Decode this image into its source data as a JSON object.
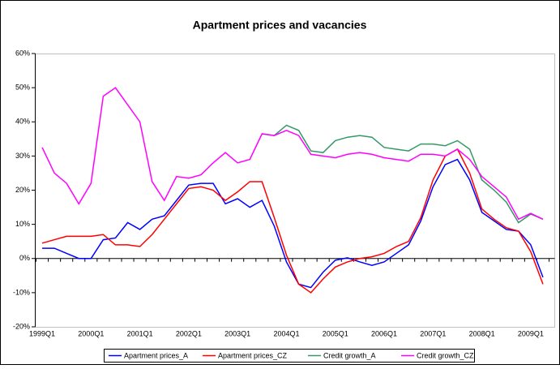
{
  "chart_data": {
    "type": "line",
    "title": "Apartment prices and vacancies",
    "categories": [
      "1999Q1",
      null,
      null,
      null,
      "2000Q1",
      null,
      null,
      null,
      "2001Q1",
      null,
      null,
      null,
      "2002Q1",
      null,
      null,
      null,
      "2003Q1",
      null,
      null,
      null,
      "2004Q1",
      null,
      null,
      null,
      "2005Q1",
      null,
      null,
      null,
      "2006Q1",
      null,
      null,
      null,
      "2007Q1",
      null,
      null,
      null,
      "2008Q1",
      null,
      null,
      null,
      "2009Q1",
      null
    ],
    "series": [
      {
        "name": "Apartment prices_A",
        "color": "#0000ff",
        "values": [
          3,
          3,
          1.5,
          0,
          0,
          5.5,
          6,
          10.5,
          8.5,
          11.5,
          12.5,
          17,
          21.5,
          22,
          22,
          16,
          17.5,
          15,
          17,
          9.5,
          -1,
          -7.5,
          -8.5,
          -4,
          -0.5,
          0.2,
          -1,
          -2,
          -1,
          1.5,
          4,
          11,
          21,
          27.5,
          29,
          23,
          13.5,
          11,
          8.5,
          8,
          4,
          -5.5
        ]
      },
      {
        "name": "Apartment prices_CZ",
        "color": "#ff0000",
        "values": [
          4.5,
          5.5,
          6.5,
          6.5,
          6.5,
          7,
          4,
          4,
          3.5,
          7,
          11.5,
          16,
          20.5,
          21,
          20,
          17,
          19.5,
          22.5,
          22.5,
          12,
          1,
          -7.5,
          -10,
          -6,
          -2.5,
          -1,
          0,
          0.5,
          1.5,
          3.5,
          5,
          12,
          23,
          30,
          32,
          25,
          14.5,
          11.5,
          9,
          8,
          2,
          -7.5
        ]
      },
      {
        "name": "Credit growth_A",
        "color": "#339966",
        "values": [
          null,
          null,
          null,
          null,
          null,
          null,
          null,
          null,
          null,
          null,
          null,
          null,
          null,
          null,
          null,
          null,
          null,
          null,
          36.5,
          36,
          39,
          37.5,
          31.5,
          31,
          34.5,
          35.5,
          36,
          35.5,
          32.5,
          32,
          31.5,
          33.5,
          33.5,
          33,
          34.5,
          32,
          23,
          20,
          16.5,
          10.5,
          13,
          11.5
        ]
      },
      {
        "name": "Credit growth_CZ",
        "color": "#ff00ff",
        "values": [
          32.5,
          25,
          22,
          16,
          22,
          47.5,
          50,
          45,
          40,
          22.5,
          17,
          24,
          23.5,
          24.5,
          28,
          31,
          28,
          29,
          36.5,
          36,
          37.5,
          36,
          30.5,
          30,
          29.5,
          30.5,
          31,
          30.5,
          29.5,
          29,
          28.5,
          30.5,
          30.5,
          30,
          32,
          29,
          24,
          21,
          18,
          11.5,
          13.2,
          11.5
        ]
      }
    ],
    "ylim": [
      -20,
      60
    ],
    "yticks": [
      {
        "value": -20,
        "label": "-20%"
      },
      {
        "value": -10,
        "label": "-10%"
      },
      {
        "value": 0,
        "label": "0%"
      },
      {
        "value": 10,
        "label": "10%"
      },
      {
        "value": 20,
        "label": "20%"
      },
      {
        "value": 30,
        "label": "30%"
      },
      {
        "value": 40,
        "label": "40%"
      },
      {
        "value": 50,
        "label": "50%"
      },
      {
        "value": 60,
        "label": "60%"
      }
    ],
    "grid": false
  }
}
